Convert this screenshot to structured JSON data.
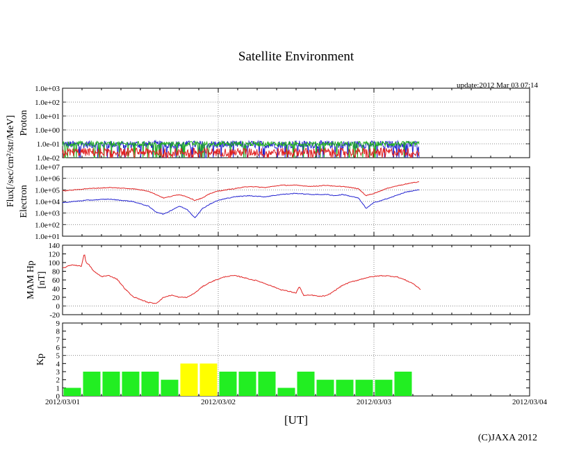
{
  "chart_data": {
    "type": "line",
    "title": "Satellite Environment",
    "update_text": "update:2012 Mar 03 07:14",
    "xlabel": "[UT]",
    "x_ticks": [
      "2012/03/01",
      "2012/03/02",
      "2012/03/03",
      "2012/03/04"
    ],
    "x_range_days": [
      0,
      3
    ],
    "copyright": "(C)JAXA 2012",
    "flux_label": "Flux[/sec/cm²/str/MeV]",
    "panels": [
      {
        "name": "proton",
        "ylabel": "Proton",
        "scale": "log",
        "ylim_exp": [
          -2,
          3
        ],
        "y_ticks": [
          "1.0e-02",
          "1.0e-01",
          "1.0e+00",
          "1.0e+01",
          "1.0e+02",
          "1.0e+03"
        ],
        "series": [
          {
            "name": "proton-channel-1",
            "color": "#2020d0",
            "level_exp": -1.05,
            "noise_exp": 0.55
          },
          {
            "name": "proton-channel-2",
            "color": "#20b020",
            "level_exp": -1.0,
            "noise_exp": 0.35
          },
          {
            "name": "proton-channel-3",
            "color": "#e02020",
            "level_exp": -1.6,
            "noise_exp": 0.6
          }
        ],
        "end_day": 2.29
      },
      {
        "name": "electron",
        "ylabel": "Electron",
        "scale": "log",
        "ylim_exp": [
          1,
          7
        ],
        "y_ticks": [
          "1.0e+01",
          "1.0e+02",
          "1.0e+03",
          "1.0e+04",
          "1.0e+05",
          "1.0e+06",
          "1.0e+07"
        ],
        "series": [
          {
            "name": "electron-high",
            "color": "#e02020",
            "x": [
              0,
              0.15,
              0.3,
              0.45,
              0.55,
              0.6,
              0.65,
              0.75,
              0.8,
              0.85,
              0.9,
              0.95,
              1.0,
              1.1,
              1.2,
              1.3,
              1.4,
              1.5,
              1.6,
              1.7,
              1.75,
              1.8,
              1.9,
              1.95,
              2.0,
              2.1,
              2.2,
              2.29
            ],
            "values_exp": [
              4.9,
              5.1,
              5.2,
              5.1,
              4.9,
              4.6,
              4.3,
              4.6,
              4.4,
              4.1,
              4.3,
              4.7,
              4.9,
              5.1,
              5.3,
              5.2,
              5.4,
              5.4,
              5.3,
              5.4,
              5.3,
              5.3,
              5.1,
              4.5,
              4.7,
              5.2,
              5.5,
              5.7
            ]
          },
          {
            "name": "electron-low",
            "color": "#2020d0",
            "x": [
              0,
              0.15,
              0.3,
              0.45,
              0.55,
              0.6,
              0.65,
              0.75,
              0.8,
              0.85,
              0.9,
              0.95,
              1.0,
              1.1,
              1.2,
              1.3,
              1.4,
              1.5,
              1.6,
              1.7,
              1.75,
              1.8,
              1.9,
              1.95,
              2.0,
              2.1,
              2.2,
              2.29
            ],
            "values_exp": [
              3.9,
              4.1,
              4.2,
              4.0,
              3.6,
              3.1,
              2.9,
              3.6,
              3.3,
              2.6,
              3.4,
              3.8,
              4.1,
              4.4,
              4.5,
              4.4,
              4.6,
              4.7,
              4.6,
              4.6,
              4.5,
              4.6,
              4.3,
              3.4,
              3.9,
              4.3,
              4.8,
              5.0
            ]
          }
        ]
      },
      {
        "name": "mam-hp",
        "ylabel": "MAM Hp",
        "ylabel2": "[nT]",
        "scale": "linear",
        "ylim": [
          -20,
          140
        ],
        "y_ticks": [
          "-20",
          "0",
          "20",
          "40",
          "60",
          "80",
          "100",
          "120",
          "140"
        ],
        "series": [
          {
            "name": "hp",
            "color": "#e02020",
            "x": [
              0,
              0.06,
              0.1,
              0.12,
              0.14,
              0.15,
              0.17,
              0.2,
              0.25,
              0.3,
              0.35,
              0.4,
              0.45,
              0.5,
              0.55,
              0.6,
              0.65,
              0.7,
              0.75,
              0.8,
              0.85,
              0.9,
              0.95,
              1.0,
              1.05,
              1.1,
              1.15,
              1.2,
              1.25,
              1.3,
              1.35,
              1.4,
              1.45,
              1.5,
              1.52,
              1.55,
              1.6,
              1.65,
              1.7,
              1.75,
              1.8,
              1.85,
              1.9,
              1.95,
              2.0,
              2.05,
              2.1,
              2.15,
              2.2,
              2.25,
              2.3
            ],
            "values": [
              87,
              95,
              93,
              91,
              122,
              100,
              95,
              80,
              68,
              70,
              62,
              40,
              22,
              15,
              8,
              6,
              20,
              25,
              20,
              20,
              30,
              45,
              55,
              62,
              68,
              70,
              67,
              62,
              58,
              52,
              45,
              38,
              34,
              30,
              45,
              24,
              25,
              22,
              24,
              36,
              48,
              55,
              60,
              65,
              68,
              70,
              69,
              67,
              60,
              52,
              38
            ]
          }
        ]
      },
      {
        "name": "kp",
        "ylabel": "Kp",
        "scale": "linear",
        "ylim": [
          0,
          9
        ],
        "y_ticks": [
          "0",
          "1",
          "2",
          "3",
          "4",
          "5",
          "6",
          "7",
          "8",
          "9"
        ],
        "bars": [
          {
            "value": 1,
            "color": "#22ee22"
          },
          {
            "value": 3,
            "color": "#22ee22"
          },
          {
            "value": 3,
            "color": "#22ee22"
          },
          {
            "value": 3,
            "color": "#22ee22"
          },
          {
            "value": 3,
            "color": "#22ee22"
          },
          {
            "value": 2,
            "color": "#22ee22"
          },
          {
            "value": 4,
            "color": "#ffff00"
          },
          {
            "value": 4,
            "color": "#ffff00"
          },
          {
            "value": 3,
            "color": "#22ee22"
          },
          {
            "value": 3,
            "color": "#22ee22"
          },
          {
            "value": 3,
            "color": "#22ee22"
          },
          {
            "value": 1,
            "color": "#22ee22"
          },
          {
            "value": 3,
            "color": "#22ee22"
          },
          {
            "value": 2,
            "color": "#22ee22"
          },
          {
            "value": 2,
            "color": "#22ee22"
          },
          {
            "value": 2,
            "color": "#22ee22"
          },
          {
            "value": 2,
            "color": "#22ee22"
          },
          {
            "value": 3,
            "color": "#22ee22"
          }
        ],
        "bar_period_hours": 3,
        "ref_line": 5
      }
    ]
  }
}
